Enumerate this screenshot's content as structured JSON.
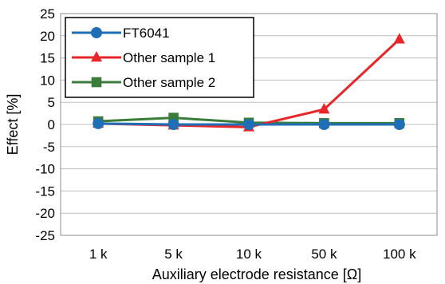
{
  "chart_data": {
    "type": "line",
    "categories": [
      "1 k",
      "5 k",
      "10 k",
      "50 k",
      "100 k"
    ],
    "xlabel": "Auxiliary electrode resistance [Ω]",
    "ylabel": "Effect [%]",
    "ylim": [
      -25,
      25
    ],
    "ytick_step": 5,
    "grid": "horizontal",
    "legend_position": "top-left",
    "series": [
      {
        "name": "FT6041",
        "marker": "circle",
        "color": "#1f6fb7",
        "values": [
          0.2,
          0.0,
          0.0,
          0.0,
          0.0
        ]
      },
      {
        "name": "Other sample 1",
        "marker": "triangle",
        "color": "#e8262a",
        "values": [
          0.2,
          -0.2,
          -0.6,
          3.4,
          19.2
        ]
      },
      {
        "name": "Other sample 2",
        "marker": "square",
        "color": "#3a7d3a",
        "values": [
          0.7,
          1.5,
          0.4,
          0.3,
          0.3
        ]
      }
    ]
  }
}
